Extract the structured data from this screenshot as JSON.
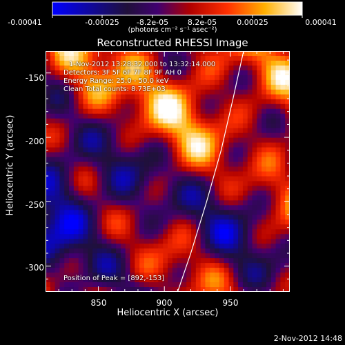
{
  "colorbar": {
    "tick_labels": [
      "-0.00041",
      "-0.00025",
      "-8.2e-05",
      "8.2e-05",
      "0.00025",
      "0.00041"
    ],
    "units_label": "(photons cm⁻² s⁻¹ asec⁻²)",
    "range": [
      -0.00041,
      0.00041
    ]
  },
  "info": {
    "time": "1-Nov-2012 13:28:32.000 to 13:32:14.000",
    "detectors": "Detectors: 3F 5F 6F 7F 8F 9F AH 0",
    "energy": "Energy Range: 25.0 - 50.0 keV",
    "clean": "Clean    Total counts: 8.73E+03",
    "peak": "Position of Peak = [892,-153]"
  },
  "footer": {
    "date": "2-Nov-2012 14:48"
  },
  "chart_data": {
    "type": "heatmap",
    "title": "Reconstructed RHESSI Image",
    "xlabel": "Heliocentric X (arcsec)",
    "ylabel": "Heliocentric Y (arcsec)",
    "xlim": [
      810,
      995
    ],
    "ylim": [
      -320,
      -133
    ],
    "x_ticks": [
      850,
      900,
      950
    ],
    "x_tick_labels": [
      "850",
      "900",
      "950"
    ],
    "y_ticks": [
      -150,
      -200,
      -250,
      -300
    ],
    "y_tick_labels": [
      "-150",
      "-200",
      "-250",
      "-300"
    ],
    "peak": [
      892,
      -153
    ],
    "limb_curve": {
      "x": [
        960,
        952,
        943,
        932,
        920,
        910
      ],
      "y": [
        -133,
        -170,
        -210,
        -250,
        -290,
        -320
      ]
    }
  }
}
